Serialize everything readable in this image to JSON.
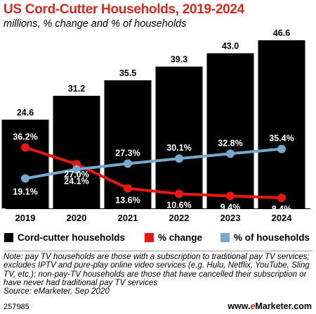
{
  "title": "US Cord-Cutter Households, 2019-2024",
  "subtitle": "millions, % change and % of households",
  "chart_data": {
    "type": "bar",
    "categories": [
      "2019",
      "2020",
      "2021",
      "2022",
      "2023",
      "2024"
    ],
    "series": [
      {
        "name": "Cord-cutter households",
        "kind": "bar",
        "color": "#000000",
        "values": [
          24.6,
          31.2,
          35.5,
          39.3,
          43.0,
          46.6
        ],
        "labels": [
          "24.6",
          "31.2",
          "35.5",
          "39.3",
          "43.0",
          "46.6"
        ]
      },
      {
        "name": "% change",
        "kind": "line",
        "color": "#e8170f",
        "values": [
          36.2,
          27.0,
          13.6,
          10.6,
          9.4,
          8.4
        ],
        "labels": [
          "36.2%",
          "27.0%",
          "13.6%",
          "10.6%",
          "9.4%",
          "8.4%"
        ]
      },
      {
        "name": "% of households",
        "kind": "line",
        "color": "#76a7cc",
        "values": [
          19.1,
          24.1,
          27.3,
          30.1,
          32.8,
          35.4
        ],
        "labels": [
          "19.1%",
          "24.1%",
          "27.3%",
          "30.1%",
          "32.8%",
          "35.4%"
        ]
      }
    ],
    "ylim": [
      0,
      48
    ]
  },
  "legend": {
    "bars": "Cord-cutter households",
    "change": "% change",
    "share": "% of households"
  },
  "note": "Note: pay TV households are those with a subscription to traditional pay TV services; excludes IPTV and pure-play online video services (e.g. Hulu, Netflix, YouTube, Sling TV, etc.); non-pay-TV households are those that have cancelled their subscription or have never had traditional pay TV services",
  "source": "Source: eMarketer, Sep 2020",
  "chart_id": "257985",
  "brand": {
    "prefix": "www.",
    "e": "e",
    "rest": "Marketer.com"
  }
}
